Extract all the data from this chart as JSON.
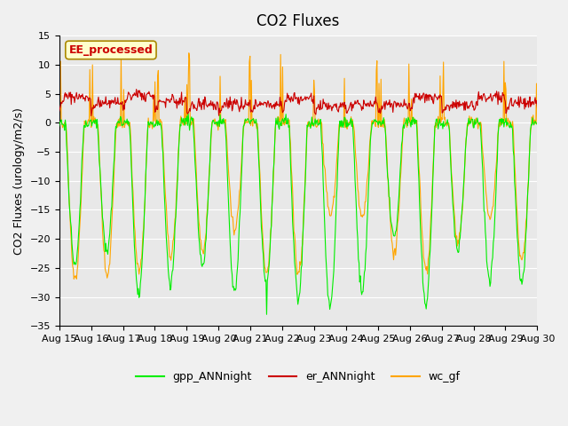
{
  "title": "CO2 Fluxes",
  "ylabel": "CO2 Fluxes (urology/m2/s)",
  "xlabel": "",
  "ylim": [
    -35,
    15
  ],
  "yticks": [
    -35,
    -30,
    -25,
    -20,
    -15,
    -10,
    -5,
    0,
    5,
    10,
    15
  ],
  "date_labels": [
    "Aug 15",
    "Aug 16",
    "Aug 17",
    "Aug 18",
    "Aug 19",
    "Aug 20",
    "Aug 21",
    "Aug 22",
    "Aug 23",
    "Aug 24",
    "Aug 25",
    "Aug 26",
    "Aug 27",
    "Aug 28",
    "Aug 29",
    "Aug 30"
  ],
  "gpp_color": "#00ee00",
  "er_color": "#cc0000",
  "wc_color": "#ffa500",
  "legend_labels": [
    "gpp_ANNnight",
    "er_ANNnight",
    "wc_gf"
  ],
  "annotation_text": "EE_processed",
  "annotation_color": "#cc0000",
  "annotation_bg": "#ffffcc",
  "annotation_border": "#aa8800",
  "background_color": "#e8e8e8",
  "grid_color": "#ffffff",
  "title_fontsize": 12,
  "label_fontsize": 9,
  "tick_fontsize": 8
}
